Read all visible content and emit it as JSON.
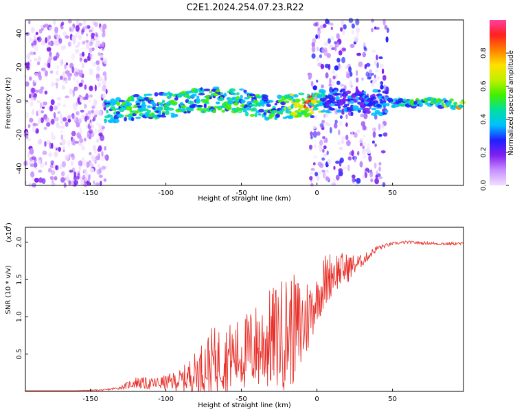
{
  "figure": {
    "title": "C2E1.2024.254.07.23.R22"
  },
  "chart_data": [
    {
      "type": "heatmap",
      "title": "C2E1.2024.254.07.23.R22",
      "xlabel": "Height of straight line (km)",
      "ylabel": "Frequency (Hz)",
      "xlim": [
        -193,
        97
      ],
      "ylim": [
        -50,
        48
      ],
      "xticks": [
        -150,
        -100,
        -50,
        0,
        50
      ],
      "yticks": [
        -40,
        -20,
        0,
        20,
        40
      ],
      "colorbar": {
        "label": "Normalized spectral amplitude",
        "range": [
          0.0,
          1.0
        ],
        "ticks": [
          0.0,
          0.2,
          0.4,
          0.6,
          0.8
        ],
        "tick_labels": [
          "0.0",
          "0.2",
          "0.4",
          "0.6",
          "0.8"
        ],
        "colors": [
          "#f0e0ff",
          "#c890ff",
          "#8020f0",
          "#2020ff",
          "#00c0ff",
          "#00e0a0",
          "#40f000",
          "#c0f000",
          "#ffe000",
          "#ff8000",
          "#ff2020",
          "#ff40a0"
        ]
      },
      "regions": [
        {
          "x_range": [
            -193,
            -139
          ],
          "description_level": 0.15
        },
        {
          "x_range": [
            -139,
            -5
          ],
          "description_level": 0.35
        },
        {
          "x_range": [
            -5,
            47
          ],
          "description_level": 0.2
        },
        {
          "x_range": [
            47,
            97
          ],
          "description_level": 0.5
        }
      ],
      "ridge": {
        "x": [
          -140,
          -125,
          -110,
          -95,
          -80,
          -65,
          -50,
          -35,
          -20,
          -5,
          10,
          30,
          50,
          70,
          97
        ],
        "y": [
          -6,
          -4,
          -3,
          -2,
          0,
          1,
          0,
          -4,
          -3,
          -2,
          0,
          -1,
          -1,
          -1,
          -2
        ],
        "amplitude": [
          0.45,
          0.55,
          0.5,
          0.55,
          0.5,
          0.5,
          0.55,
          0.45,
          0.6,
          0.85,
          0.35,
          0.35,
          0.4,
          0.5,
          0.75
        ]
      }
    },
    {
      "type": "line",
      "xlabel": "Height of straight line (km)",
      "ylabel": "SNR (10 * v/v)",
      "scale_label": "(x10",
      "scale_exponent": "4",
      "xlim": [
        -193,
        97
      ],
      "ylim": [
        0,
        2.2
      ],
      "xticks": [
        -150,
        -100,
        -50,
        0,
        50
      ],
      "yticks": [
        0.5,
        1.0,
        1.5,
        2.0
      ],
      "ytick_labels": [
        "0.5",
        "1.0",
        "1.5",
        "2.0"
      ],
      "series": [
        {
          "color": "#e8302a",
          "x": [
            -193,
            -180,
            -160,
            -140,
            -130,
            -120,
            -110,
            -100,
            -90,
            -80,
            -70,
            -60,
            -50,
            -40,
            -30,
            -20,
            -10,
            0,
            5,
            10,
            20,
            30,
            40,
            50,
            60,
            70,
            80,
            97
          ],
          "y": [
            0.01,
            0.01,
            0.01,
            0.02,
            0.05,
            0.12,
            0.1,
            0.12,
            0.15,
            0.25,
            0.4,
            0.45,
            0.5,
            0.6,
            0.7,
            0.8,
            0.85,
            1.25,
            1.45,
            1.6,
            1.65,
            1.75,
            1.92,
            1.98,
            2.0,
            1.99,
            1.98,
            1.98
          ],
          "noise": [
            0.0,
            0.0,
            0.0,
            0.01,
            0.02,
            0.08,
            0.08,
            0.1,
            0.15,
            0.3,
            0.45,
            0.45,
            0.5,
            0.6,
            0.7,
            0.8,
            0.7,
            0.3,
            0.4,
            0.3,
            0.2,
            0.08,
            0.04,
            0.02,
            0.02,
            0.02,
            0.02,
            0.02
          ]
        }
      ]
    }
  ]
}
